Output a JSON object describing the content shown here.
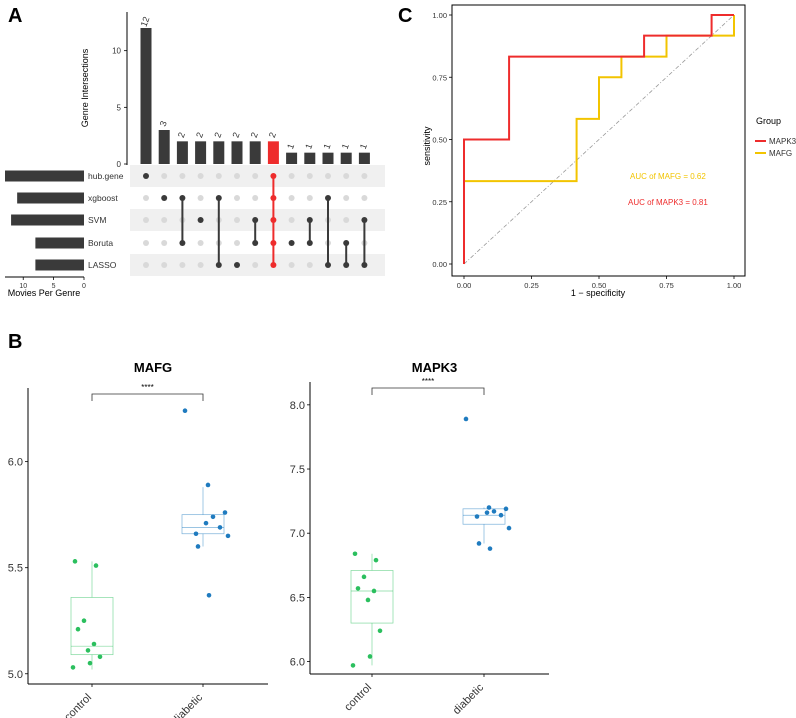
{
  "panels": {
    "a": "A",
    "b": "B",
    "c": "C"
  },
  "chart_data": [
    {
      "id": "upset",
      "type": "bar",
      "ylabel": "Genre Intersections",
      "ylim": [
        0,
        12.5
      ],
      "yticks": [
        0,
        5,
        10
      ],
      "intersection_values": [
        12,
        3,
        2,
        2,
        2,
        2,
        2,
        2,
        1,
        1,
        1,
        1,
        1
      ],
      "highlight_index": 7,
      "highlight_color": "#ee2c2c",
      "bar_color": "#3a3a3a",
      "sets": [
        "hub.gene",
        "xgboost",
        "SVM",
        "Boruta",
        "LASSO"
      ],
      "set_sizes": [
        13,
        11,
        12,
        8,
        8
      ],
      "set_size_label": "Movies Per Genre",
      "set_size_ticks": [
        10,
        5,
        0
      ],
      "combinations": [
        [
          0
        ],
        [
          1
        ],
        [
          1,
          3
        ],
        [
          2
        ],
        [
          1,
          4
        ],
        [
          4
        ],
        [
          2,
          3
        ],
        [
          0,
          1,
          2,
          3,
          4
        ],
        [
          3
        ],
        [
          2,
          3
        ],
        [
          1,
          4
        ],
        [
          3,
          4
        ],
        [
          2,
          4
        ]
      ]
    },
    {
      "id": "roc",
      "type": "line",
      "xlabel": "1 − specificity",
      "ylabel": "sensitivity",
      "xlim": [
        0,
        1
      ],
      "ylim": [
        0,
        1
      ],
      "ticks": [
        "0.00",
        "0.25",
        "0.50",
        "0.75",
        "1.00"
      ],
      "legend_title": "Group",
      "series": [
        {
          "name": "MAPK3",
          "color": "#ee2c2c",
          "auc_label": "AUC of MAPK3 =  0.81",
          "points": [
            [
              0,
              0
            ],
            [
              0,
              0.333
            ],
            [
              0,
              0.5
            ],
            [
              0.167,
              0.5
            ],
            [
              0.167,
              0.833
            ],
            [
              0.667,
              0.833
            ],
            [
              0.667,
              0.917
            ],
            [
              0.917,
              0.917
            ],
            [
              0.917,
              1
            ],
            [
              1,
              1
            ]
          ]
        },
        {
          "name": "MAFG",
          "color": "#f2c400",
          "auc_label": "AUC of MAFG =  0.62",
          "points": [
            [
              0,
              0
            ],
            [
              0,
              0.333
            ],
            [
              0.417,
              0.333
            ],
            [
              0.417,
              0.583
            ],
            [
              0.5,
              0.583
            ],
            [
              0.5,
              0.75
            ],
            [
              0.583,
              0.75
            ],
            [
              0.583,
              0.833
            ],
            [
              0.75,
              0.833
            ],
            [
              0.75,
              0.917
            ],
            [
              1,
              0.917
            ],
            [
              1,
              1
            ]
          ]
        }
      ]
    },
    {
      "id": "box_mafg",
      "type": "box",
      "title": "MAFG",
      "categories": [
        "control",
        "diabetic"
      ],
      "ylim": [
        4.98,
        6.3
      ],
      "yticks": [
        "5.0",
        "5.5",
        "6.0"
      ],
      "significance": "****",
      "colors": [
        "#2bbf5e",
        "#1f7bbf"
      ],
      "box_stats": [
        {
          "q1": 5.09,
          "median": 5.13,
          "q3": 5.36,
          "lower": 5.02,
          "upper": 5.53
        },
        {
          "q1": 5.66,
          "median": 5.69,
          "q3": 5.75,
          "lower": 5.6,
          "upper": 5.88
        }
      ],
      "points": [
        [
          5.53,
          5.51,
          5.25,
          5.21,
          5.14,
          5.11,
          5.08,
          5.05,
          5.03
        ],
        [
          6.24,
          5.89,
          5.76,
          5.74,
          5.71,
          5.69,
          5.66,
          5.65,
          5.6,
          5.37
        ]
      ]
    },
    {
      "id": "box_mapk3",
      "type": "box",
      "title": "MAPK3",
      "categories": [
        "control",
        "diabetic"
      ],
      "ylim": [
        5.95,
        8.1
      ],
      "yticks": [
        "6.0",
        "6.5",
        "7.0",
        "7.5",
        "8.0"
      ],
      "significance": "****",
      "colors": [
        "#2bbf5e",
        "#1f7bbf"
      ],
      "box_stats": [
        {
          "q1": 6.3,
          "median": 6.55,
          "q3": 6.71,
          "lower": 5.97,
          "upper": 6.84
        },
        {
          "q1": 7.07,
          "median": 7.14,
          "q3": 7.19,
          "lower": 6.92,
          "upper": 7.2
        }
      ],
      "points": [
        [
          6.84,
          6.79,
          6.66,
          6.57,
          6.55,
          6.48,
          6.24,
          6.04,
          5.97
        ],
        [
          7.89,
          7.2,
          7.19,
          7.17,
          7.16,
          7.14,
          7.13,
          7.04,
          6.92,
          6.88
        ]
      ]
    }
  ]
}
